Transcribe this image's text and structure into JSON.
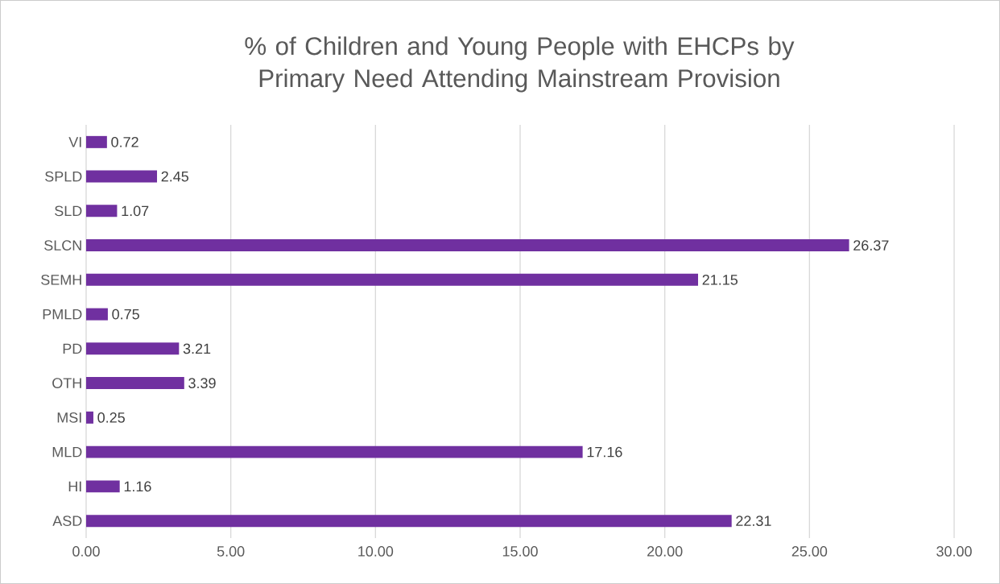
{
  "chart_data": {
    "type": "bar",
    "orientation": "horizontal",
    "title": "% of Children and Young People with EHCPs by Primary Need Attending Mainstream Provision",
    "categories": [
      "VI",
      "SPLD",
      "SLD",
      "SLCN",
      "SEMH",
      "PMLD",
      "PD",
      "OTH",
      "MSI",
      "MLD",
      "HI",
      "ASD"
    ],
    "values": [
      0.72,
      2.45,
      1.07,
      26.37,
      21.15,
      0.75,
      3.21,
      3.39,
      0.25,
      17.16,
      1.16,
      22.31
    ],
    "color": "#7030a0",
    "data_labels": true,
    "grid": "x",
    "xlim": [
      0,
      30
    ],
    "xticks": [
      {
        "value": 0,
        "label": "0.00"
      },
      {
        "value": 5,
        "label": "5.00"
      },
      {
        "value": 10,
        "label": "10.00"
      },
      {
        "value": 15,
        "label": "15.00"
      },
      {
        "value": 20,
        "label": "20.00"
      },
      {
        "value": 25,
        "label": "25.00"
      },
      {
        "value": 30,
        "label": "30.00"
      }
    ]
  }
}
